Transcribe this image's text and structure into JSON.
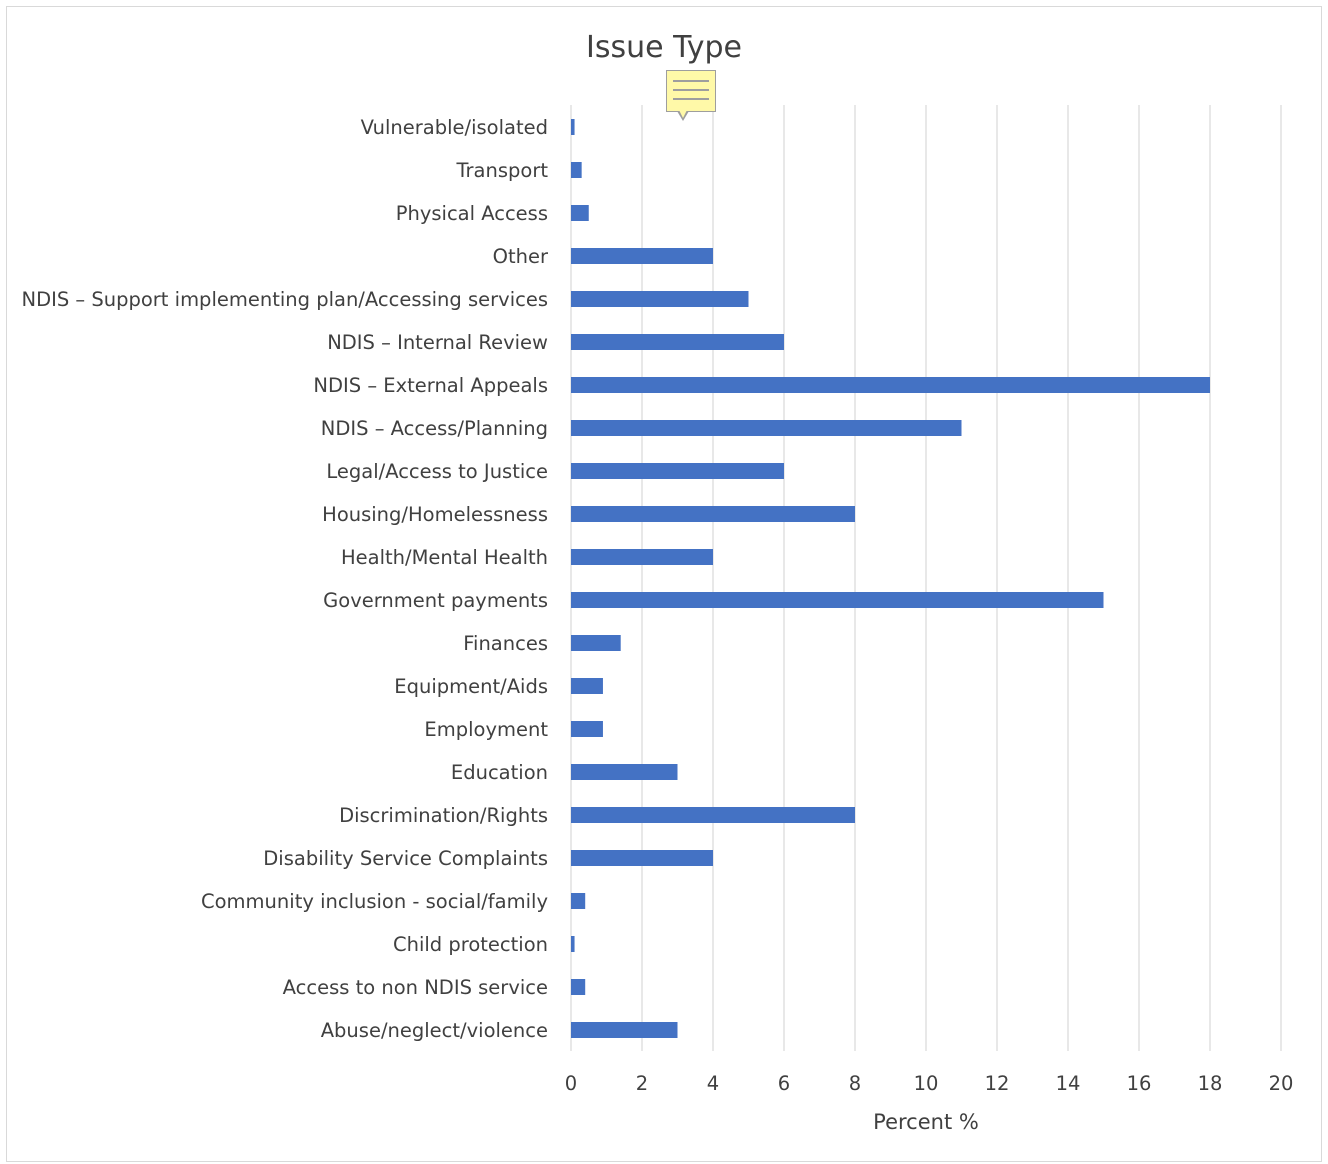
{
  "chart_data": {
    "type": "bar",
    "orientation": "horizontal",
    "title": "Issue Type",
    "xlabel": "Percent %",
    "ylabel": "",
    "xlim": [
      0,
      20
    ],
    "xticks": [
      "0",
      "2",
      "4",
      "6",
      "8",
      "10",
      "12",
      "14",
      "16",
      "18",
      "20"
    ],
    "grid": "vertical",
    "legend": "none",
    "bar_color": "#4472C4",
    "categories": [
      "Vulnerable/isolated",
      "Transport",
      "Physical Access",
      "Other",
      "NDIS – Support implementing plan/Accessing services",
      "NDIS – Internal Review",
      "NDIS – External Appeals",
      "NDIS – Access/Planning",
      "Legal/Access to Justice",
      "Housing/Homelessness",
      "Health/Mental Health",
      "Government payments",
      "Finances",
      "Equipment/Aids",
      "Employment",
      "Education",
      "Discrimination/Rights",
      "Disability Service Complaints",
      "Community inclusion - social/family",
      "Child protection",
      "Access to non NDIS service",
      "Abuse/neglect/violence"
    ],
    "values": [
      0.1,
      0.3,
      0.5,
      4,
      5,
      6,
      18,
      11,
      6,
      8,
      4,
      15,
      1.4,
      0.9,
      0.9,
      3,
      8,
      4,
      0.4,
      0.1,
      0.4,
      3
    ]
  },
  "note_icon": "comment-note-icon"
}
